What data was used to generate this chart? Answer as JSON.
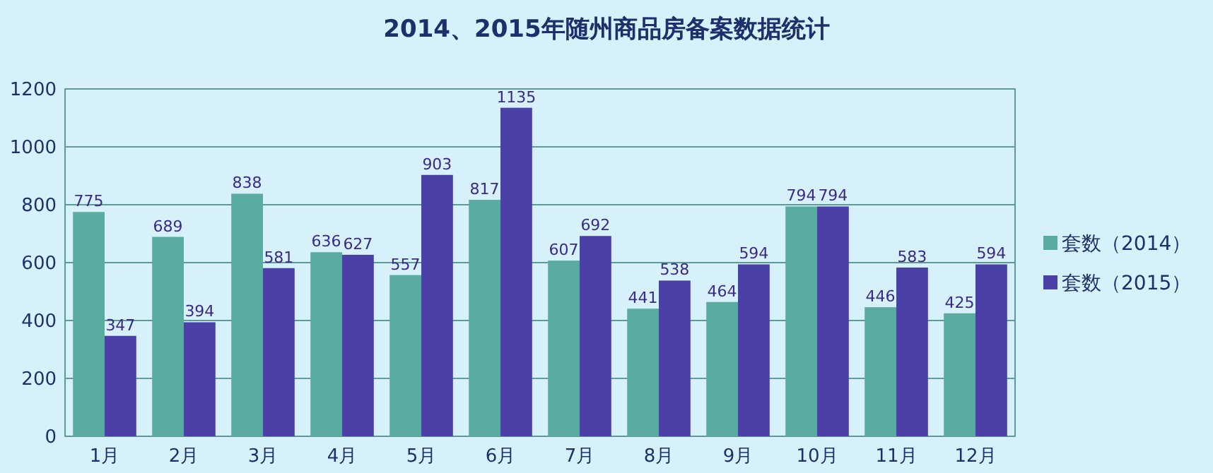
{
  "chart_data": {
    "type": "bar",
    "title": "2014、2015年随州商品房备案数据统计",
    "categories": [
      "1月",
      "2月",
      "3月",
      "4月",
      "5月",
      "6月",
      "7月",
      "8月",
      "9月",
      "10月",
      "11月",
      "12月"
    ],
    "series": [
      {
        "name": "套数（2014）",
        "color": "#5aaca0",
        "values": [
          775,
          689,
          838,
          636,
          557,
          817,
          607,
          441,
          464,
          794,
          446,
          425
        ]
      },
      {
        "name": "套数（2015）",
        "color": "#4b40a6",
        "values": [
          347,
          394,
          581,
          627,
          903,
          1135,
          692,
          538,
          594,
          794,
          583,
          594
        ]
      }
    ],
    "ylim": [
      0,
      1200
    ],
    "yticks": [
      0,
      200,
      400,
      600,
      800,
      1000,
      1200
    ],
    "grid": "y",
    "legend": "right",
    "data_labels": true
  }
}
